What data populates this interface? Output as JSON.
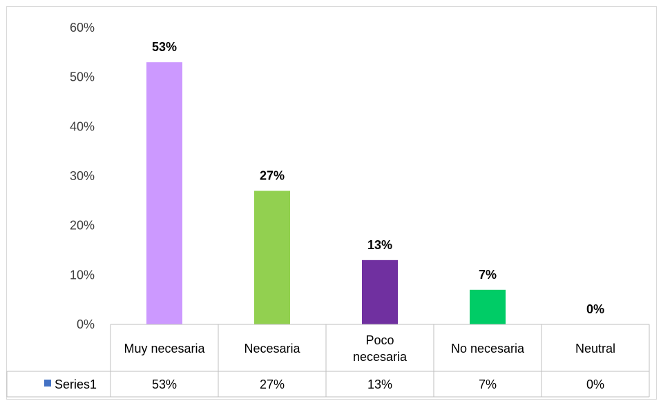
{
  "chart_data": {
    "type": "bar",
    "categories": [
      [
        "Muy necesaria"
      ],
      [
        "Necesaria"
      ],
      [
        "Poco",
        "necesaria"
      ],
      [
        "No necesaria"
      ],
      [
        "Neutral"
      ]
    ],
    "series": [
      {
        "name": "Series1",
        "values": [
          0.53,
          0.27,
          0.13,
          0.07,
          0.0
        ],
        "value_labels": [
          "53%",
          "27%",
          "13%",
          "7%",
          "0%"
        ],
        "colors": [
          "#cc99ff",
          "#92d050",
          "#7030a0",
          "#00cc66",
          "#4472c4"
        ]
      }
    ],
    "legend_key_color": "#4472c4",
    "ylim": [
      0,
      0.6
    ],
    "y_ticks": [
      "0%",
      "10%",
      "20%",
      "30%",
      "40%",
      "50%",
      "60%"
    ],
    "grid": false,
    "data_table": true
  }
}
